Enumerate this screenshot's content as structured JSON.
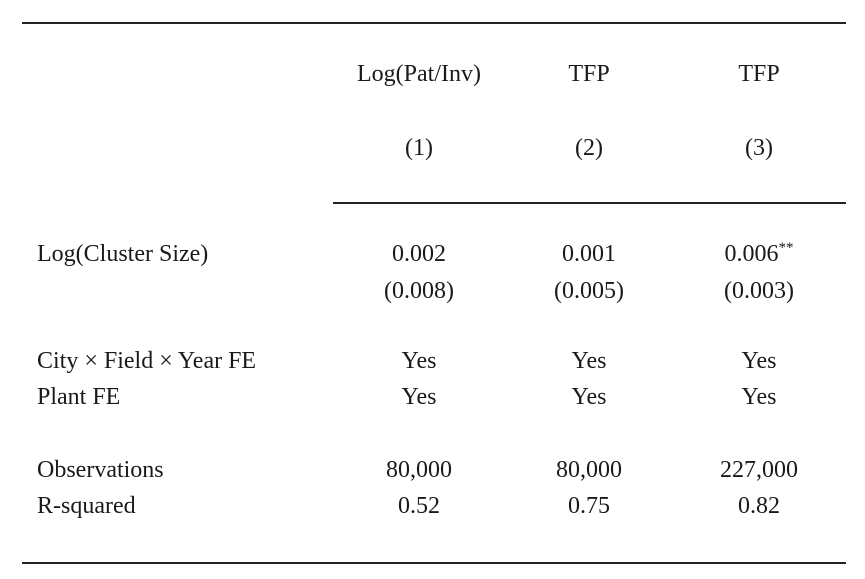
{
  "table": {
    "columns": [
      {
        "header": "Log(Pat/Inv)",
        "number": "(1)"
      },
      {
        "header": "TFP",
        "number": "(2)"
      },
      {
        "header": "TFP",
        "number": "(3)"
      }
    ],
    "rows": {
      "cluster_size": {
        "label": "Log(Cluster Size)",
        "coefficients": [
          "0.002",
          "0.001",
          "0.006"
        ],
        "stars": [
          "",
          "",
          "**"
        ],
        "std_errors": [
          "(0.008)",
          "(0.005)",
          "(0.003)"
        ]
      },
      "city_fe": {
        "label": "City × Field × Year FE",
        "values": [
          "Yes",
          "Yes",
          "Yes"
        ]
      },
      "plant_fe": {
        "label": "Plant FE",
        "values": [
          "Yes",
          "Yes",
          "Yes"
        ]
      },
      "observations": {
        "label": "Observations",
        "values": [
          "80,000",
          "80,000",
          "227,000"
        ]
      },
      "r_squared": {
        "label": "R-squared",
        "values": [
          "0.52",
          "0.75",
          "0.82"
        ]
      }
    }
  }
}
